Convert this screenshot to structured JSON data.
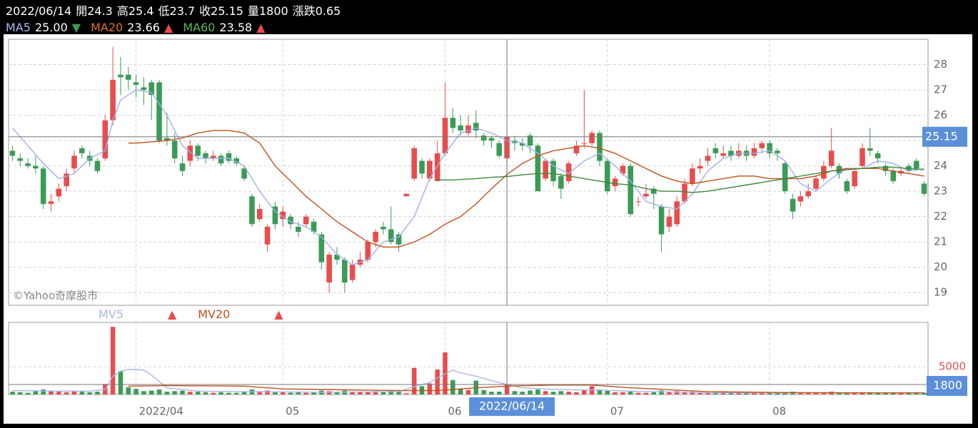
{
  "chart_data": {
    "type": "candlestick",
    "categories": [
      null,
      null,
      null,
      null,
      null,
      null,
      null,
      null,
      null,
      null,
      null,
      null,
      null,
      null,
      null,
      null,
      "2022/04",
      null,
      null,
      null,
      null,
      null,
      null,
      null,
      null,
      null,
      null,
      null,
      null,
      null,
      null,
      null,
      null,
      null,
      null,
      "05",
      null,
      null,
      null,
      null,
      null,
      null,
      null,
      null,
      null,
      null,
      null,
      null,
      null,
      null,
      null,
      null,
      null,
      null,
      null,
      null,
      "06",
      null,
      null,
      null,
      null,
      null,
      null,
      null,
      "2022/06/14",
      null,
      null,
      null,
      null,
      null,
      null,
      null,
      null,
      null,
      null,
      null,
      null,
      "07",
      null,
      null,
      null,
      null,
      null,
      null,
      null,
      null,
      null,
      null,
      null,
      null,
      null,
      null,
      null,
      null,
      null,
      null,
      null,
      null,
      "08",
      null,
      null,
      null,
      null,
      null,
      null,
      null,
      null,
      null,
      null,
      null,
      null,
      null,
      null,
      null,
      null,
      null,
      null,
      null,
      null
    ],
    "candles": {
      "up_color": "#e84c4c",
      "down_color": "#3a9b56",
      "open": [
        24.6,
        24.3,
        24.1,
        24.0,
        23.9,
        22.5,
        22.8,
        23.2,
        23.9,
        24.7,
        24.4,
        24.2,
        24.3,
        25.8,
        27.6,
        27.6,
        27.3,
        27.1,
        27.3,
        27.3,
        25.1,
        25.0,
        24.1,
        24.2,
        24.8,
        24.5,
        24.3,
        24.4,
        24.5,
        24.3,
        23.9,
        22.8,
        21.9,
        20.9,
        22.4,
        21.9,
        22.0,
        21.6,
        21.7,
        21.8,
        21.3,
        19.4,
        20.5,
        20.3,
        19.5,
        20.1,
        20.3,
        21.0,
        21.6,
        21.5,
        21.3,
        22.8,
        23.5,
        24.2,
        23.5,
        23.4,
        24.5,
        25.9,
        25.6,
        25.3,
        25.7,
        25.2,
        25.1,
        24.9,
        24.3,
        25.0,
        24.9,
        25.2,
        24.8,
        23.5,
        24.2,
        23.6,
        23.4,
        24.5,
        24.9,
        24.9,
        25.3,
        24.2,
        23.2,
        23.7,
        24.0,
        22.6,
        22.8,
        23.1,
        22.4,
        21.6,
        21.7,
        22.6,
        23.3,
        23.9,
        24.2,
        24.7,
        24.4,
        24.6,
        24.4,
        24.6,
        24.4,
        24.7,
        24.9,
        24.6,
        24.1,
        22.7,
        22.6,
        22.8,
        23.1,
        23.5,
        24.0,
        24.0,
        23.4,
        23.2,
        24.0,
        24.7,
        24.5,
        24.0,
        23.8,
        23.7,
        24.0,
        24.2,
        23.3
      ],
      "high": [
        24.8,
        24.5,
        24.3,
        24.4,
        24.0,
        22.9,
        23.3,
        23.9,
        24.6,
        24.8,
        24.6,
        24.3,
        26.0,
        28.7,
        28.3,
        27.9,
        27.6,
        27.5,
        27.4,
        27.4,
        26.1,
        25.3,
        24.4,
        25.0,
        24.9,
        24.6,
        24.6,
        24.5,
        24.6,
        24.4,
        24.0,
        22.9,
        22.5,
        21.7,
        22.6,
        22.4,
        22.1,
        21.8,
        22.1,
        21.9,
        21.4,
        20.6,
        20.8,
        20.4,
        20.3,
        20.6,
        21.1,
        21.5,
        21.8,
        22.4,
        21.4,
        22.9,
        24.8,
        24.3,
        24.3,
        25.0,
        27.3,
        26.3,
        26.0,
        26.0,
        26.2,
        25.3,
        25.2,
        25.0,
        25.4,
        25.2,
        25.1,
        25.3,
        24.9,
        24.3,
        24.3,
        23.7,
        24.2,
        25.0,
        27.0,
        25.4,
        25.4,
        24.3,
        23.6,
        24.1,
        24.1,
        22.8,
        23.3,
        23.2,
        22.5,
        22.3,
        22.8,
        23.5,
        24.1,
        24.3,
        24.7,
        24.9,
        24.8,
        24.8,
        24.9,
        24.8,
        24.9,
        25.0,
        25.0,
        24.7,
        24.2,
        22.9,
        23.0,
        23.3,
        23.6,
        24.2,
        25.5,
        24.1,
        23.5,
        23.9,
        24.9,
        25.5,
        24.6,
        24.1,
        23.9,
        23.9,
        24.1,
        24.3,
        23.4
      ],
      "low": [
        24.2,
        24.0,
        23.9,
        23.7,
        22.3,
        22.2,
        22.6,
        23.0,
        23.7,
        24.3,
        24.0,
        23.7,
        24.2,
        25.6,
        26.8,
        27.0,
        26.7,
        26.4,
        25.8,
        24.9,
        24.8,
        24.1,
        23.6,
        24.0,
        24.2,
        24.1,
        24.2,
        24.0,
        24.1,
        24.0,
        23.4,
        21.6,
        21.8,
        20.6,
        21.5,
        21.6,
        21.5,
        21.2,
        21.6,
        21.3,
        19.9,
        19.0,
        20.1,
        19.0,
        19.4,
        20.0,
        20.2,
        20.8,
        21.3,
        20.9,
        20.6,
        22.8,
        23.4,
        23.5,
        23.4,
        23.4,
        24.4,
        25.3,
        25.2,
        25.2,
        25.1,
        24.8,
        24.7,
        24.3,
        23.7,
        24.6,
        24.6,
        24.5,
        23.0,
        23.4,
        23.2,
        22.7,
        23.3,
        24.4,
        24.7,
        24.8,
        24.0,
        22.9,
        23.0,
        23.6,
        22.0,
        22.4,
        22.7,
        22.3,
        20.6,
        21.4,
        21.6,
        22.5,
        23.2,
        23.7,
        24.0,
        24.3,
        24.3,
        24.2,
        24.3,
        24.2,
        24.3,
        24.5,
        24.3,
        24.2,
        22.9,
        21.9,
        22.4,
        22.7,
        23.0,
        23.4,
        23.9,
        23.5,
        22.9,
        23.1,
        23.9,
        24.4,
        24.1,
        23.6,
        23.3,
        23.6,
        23.7,
        23.8,
        22.8
      ],
      "close": [
        24.4,
        24.2,
        24.0,
        23.9,
        22.5,
        22.6,
        23.1,
        23.7,
        24.4,
        24.5,
        24.2,
        23.8,
        25.8,
        27.4,
        27.5,
        27.4,
        27.2,
        27.0,
        26.8,
        25.0,
        25.0,
        24.3,
        23.8,
        24.8,
        24.4,
        24.3,
        24.4,
        24.1,
        24.2,
        24.1,
        23.5,
        21.7,
        22.3,
        21.6,
        21.7,
        22.2,
        21.7,
        21.4,
        22.0,
        21.4,
        20.2,
        20.5,
        20.3,
        19.4,
        20.1,
        20.3,
        21.0,
        21.4,
        21.5,
        21.0,
        20.9,
        22.9,
        24.7,
        23.7,
        24.2,
        24.5,
        25.9,
        25.5,
        25.4,
        25.6,
        25.4,
        25.0,
        25.0,
        24.4,
        25.15,
        24.9,
        24.8,
        24.8,
        23.0,
        24.2,
        23.4,
        23.1,
        24.1,
        24.8,
        24.9,
        25.3,
        24.2,
        23.0,
        23.5,
        24.0,
        22.1,
        22.6,
        22.9,
        22.9,
        21.3,
        22.0,
        22.6,
        23.3,
        23.9,
        24.0,
        24.4,
        24.5,
        24.5,
        24.4,
        24.6,
        24.4,
        24.7,
        24.9,
        24.5,
        24.5,
        23.0,
        22.2,
        22.8,
        23.0,
        23.5,
        24.0,
        24.6,
        23.7,
        23.0,
        23.8,
        24.7,
        24.6,
        24.3,
        23.8,
        23.4,
        23.8,
        23.8,
        23.9,
        22.9
      ]
    },
    "ylim": [
      18.5,
      29
    ],
    "yticks": [
      19,
      20,
      21,
      22,
      23,
      24,
      25,
      26,
      27,
      28
    ],
    "grid": true,
    "lines": [
      {
        "name": "MA5",
        "color": "#9fb1ea",
        "legend_color": "#a9b9ef",
        "current": {
          "value": 25,
          "label": "25.00"
        },
        "trend": "▼",
        "trend_color": "#3a9b56",
        "x": [
          0,
          4,
          6,
          8,
          10,
          12,
          13,
          14,
          16,
          18,
          20,
          22,
          24,
          26,
          28,
          30,
          32,
          34,
          36,
          38,
          40,
          42,
          44,
          46,
          48,
          50,
          52,
          54,
          56,
          58,
          60,
          62,
          64,
          66,
          68,
          70,
          72,
          74,
          76,
          78,
          80,
          82,
          84,
          86,
          88,
          90,
          92,
          94,
          96,
          98,
          100,
          102,
          104,
          106,
          108,
          110,
          112,
          114,
          116,
          118
        ],
        "values": [
          25.5,
          24.1,
          23.5,
          23.7,
          24.3,
          24.6,
          25.8,
          26.6,
          27.0,
          26.9,
          26.0,
          24.8,
          24.3,
          24.3,
          24.3,
          24.0,
          23.0,
          22.2,
          21.8,
          21.6,
          21.2,
          20.5,
          20.1,
          20.3,
          21.0,
          21.2,
          22.0,
          23.5,
          24.5,
          25.3,
          25.5,
          25.3,
          25.0,
          24.9,
          24.5,
          24.0,
          23.7,
          24.2,
          24.5,
          24.0,
          23.4,
          22.6,
          22.4,
          22.3,
          22.9,
          23.8,
          24.3,
          24.5,
          24.5,
          24.6,
          24.2,
          23.3,
          23.0,
          23.5,
          23.9,
          23.9,
          24.2,
          24.1,
          23.8,
          23.9
        ]
      },
      {
        "name": "MA20",
        "color": "#c0501a",
        "legend_color": "#e0702e",
        "current": {
          "value": 23.66,
          "label": "23.66"
        },
        "trend": "▲",
        "trend_color": "#e84c4c",
        "x": [
          15,
          16,
          18,
          20,
          22,
          24,
          26,
          28,
          30,
          32,
          34,
          36,
          38,
          40,
          42,
          44,
          46,
          48,
          50,
          52,
          54,
          56,
          58,
          60,
          62,
          64,
          66,
          68,
          70,
          72,
          74,
          76,
          78,
          80,
          82,
          84,
          86,
          88,
          90,
          92,
          94,
          96,
          98,
          100,
          102,
          104,
          106,
          108,
          110,
          112,
          114,
          116,
          118
        ],
        "values": [
          24.9,
          24.9,
          24.95,
          25.0,
          25.1,
          25.3,
          25.4,
          25.4,
          25.3,
          24.9,
          24.0,
          23.4,
          22.8,
          22.3,
          21.8,
          21.4,
          21.0,
          20.8,
          20.8,
          21.0,
          21.3,
          21.7,
          22.0,
          22.5,
          23.1,
          23.66,
          24.1,
          24.4,
          24.6,
          24.7,
          24.8,
          24.7,
          24.5,
          24.2,
          23.9,
          23.6,
          23.4,
          23.3,
          23.4,
          23.5,
          23.6,
          23.6,
          23.5,
          23.5,
          23.5,
          23.6,
          23.8,
          23.9,
          23.9,
          23.9,
          23.8,
          23.7,
          23.6
        ]
      },
      {
        "name": "MA60",
        "color": "#3d8a3d",
        "legend_color": "#5cb85c",
        "current": {
          "value": 23.58,
          "label": "23.58"
        },
        "trend": "▲",
        "trend_color": "#e84c4c",
        "x": [
          55,
          57,
          60,
          62,
          64,
          66,
          68,
          70,
          72,
          74,
          76,
          78,
          80,
          82,
          84,
          86,
          88,
          90,
          92,
          94,
          96,
          98,
          100,
          102,
          104,
          106,
          108,
          110,
          112,
          114,
          116,
          118
        ],
        "values": [
          23.45,
          23.45,
          23.5,
          23.55,
          23.58,
          23.65,
          23.7,
          23.7,
          23.6,
          23.5,
          23.4,
          23.3,
          23.25,
          23.1,
          23.0,
          23.0,
          22.95,
          23.0,
          23.1,
          23.2,
          23.3,
          23.4,
          23.5,
          23.6,
          23.7,
          23.8,
          23.85,
          23.9,
          23.95,
          23.95,
          23.9,
          23.85
        ]
      }
    ],
    "volume": {
      "values": [
        500,
        400,
        300,
        600,
        900,
        700,
        500,
        400,
        600,
        500,
        400,
        500,
        1900,
        12200,
        4200,
        1300,
        1000,
        600,
        700,
        900,
        500,
        600,
        700,
        500,
        500,
        400,
        300,
        400,
        300,
        300,
        500,
        900,
        600,
        700,
        500,
        400,
        300,
        400,
        300,
        400,
        700,
        600,
        500,
        700,
        500,
        400,
        500,
        600,
        500,
        700,
        500,
        200,
        4800,
        1500,
        2000,
        4500,
        7600,
        2600,
        1000,
        800,
        2500,
        800,
        500,
        500,
        1800,
        600,
        500,
        700,
        900,
        600,
        500,
        600,
        500,
        400,
        800,
        1500,
        900,
        700,
        400,
        400,
        600,
        300,
        300,
        400,
        700,
        500,
        600,
        500,
        500,
        400,
        400,
        300,
        300,
        300,
        300,
        300,
        300,
        400,
        300,
        300,
        400,
        500,
        300,
        300,
        300,
        400,
        500,
        300,
        300,
        400,
        400,
        400,
        300,
        300,
        300,
        300,
        300,
        300,
        300
      ],
      "ylim": [
        0,
        13000
      ],
      "yticks": [
        5000
      ],
      "tick_color": "#e05050",
      "lines": [
        {
          "name": "MV5",
          "color": "#a7b7ec",
          "trend": "▲",
          "trend_color": "#e84c4c",
          "x": [
            0,
            6,
            10,
            12,
            13,
            14,
            15,
            16,
            17,
            18,
            20,
            24,
            30,
            40,
            50,
            52,
            53,
            54,
            55,
            56,
            57,
            58,
            60,
            62,
            64,
            66,
            70,
            75,
            80,
            90,
            100,
            110,
            118
          ],
          "values": [
            700,
            600,
            600,
            900,
            3300,
            4200,
            4500,
            4500,
            4400,
            3500,
            1200,
            600,
            500,
            400,
            500,
            1400,
            1800,
            2200,
            3000,
            3700,
            4400,
            3900,
            3300,
            2500,
            1800,
            1200,
            900,
            800,
            600,
            300,
            300,
            300,
            300
          ]
        },
        {
          "name": "MV20",
          "color": "#c0501a",
          "trend": "▲",
          "trend_color": "#e84c4c",
          "x": [
            15,
            20,
            30,
            35,
            40,
            50,
            55,
            60,
            64,
            70,
            75,
            80,
            90,
            100,
            110,
            118
          ],
          "values": [
            1500,
            1600,
            1500,
            1000,
            900,
            700,
            700,
            1200,
            1500,
            1700,
            1700,
            1200,
            500,
            350,
            300,
            300
          ]
        }
      ]
    },
    "header": {
      "labels": {
        "open": "開",
        "high": "高",
        "low": "低",
        "close": "收",
        "volume": "量",
        "change": "漲跌"
      },
      "change": 0.65
    },
    "highlight_color": "#5b8fd9",
    "watermark": "©Yahoo奇摩股市"
  }
}
